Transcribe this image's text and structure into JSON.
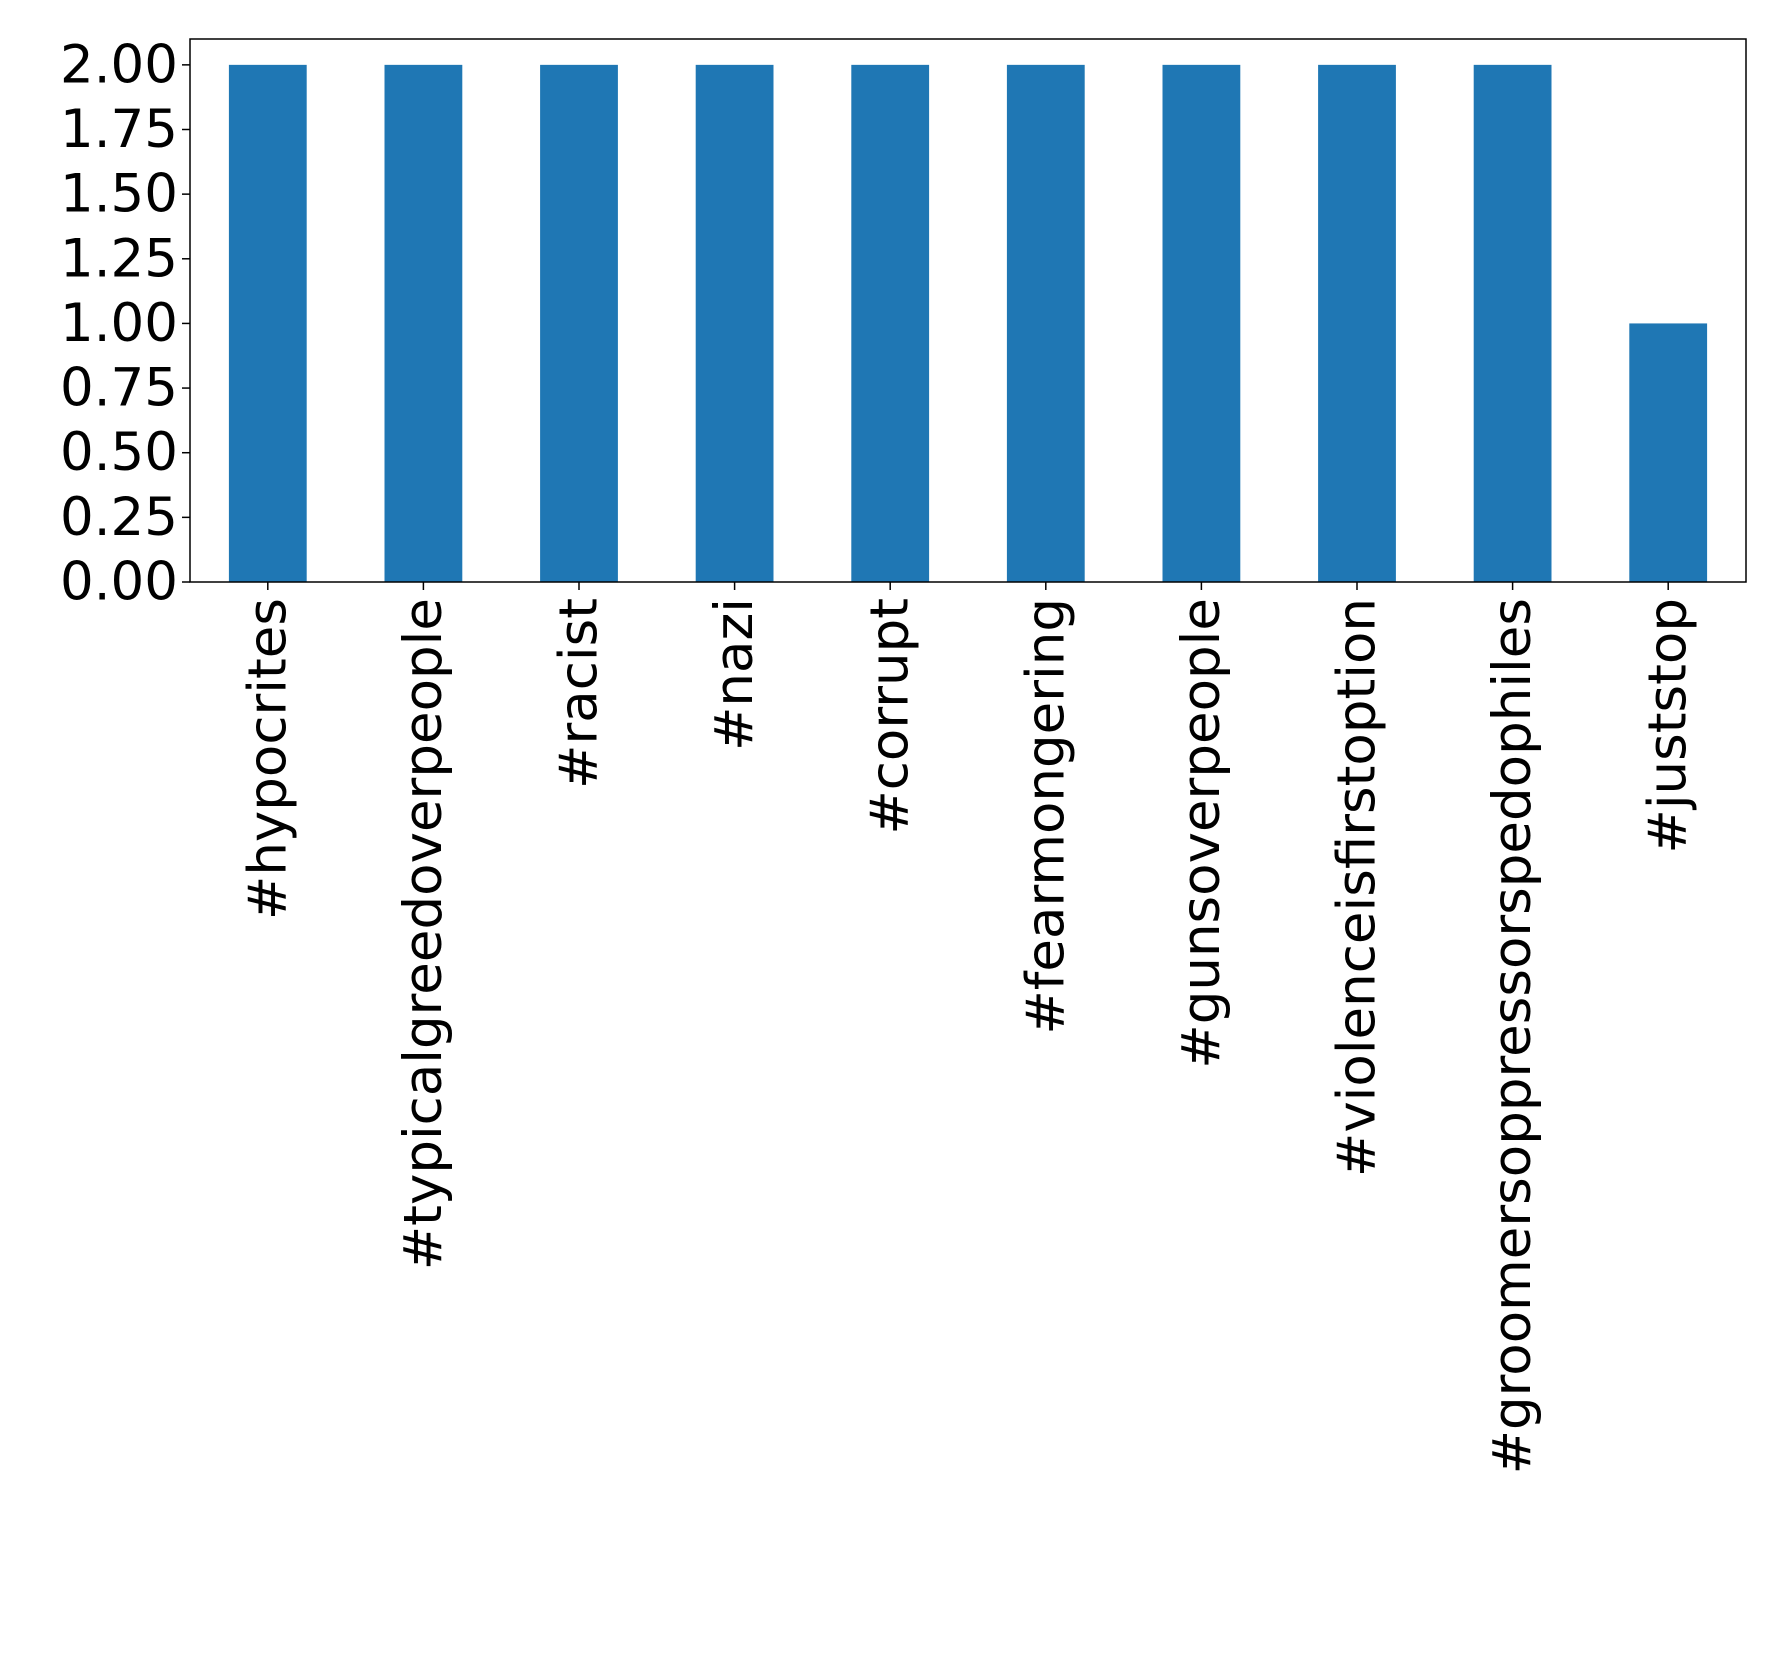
{
  "chart_data": {
    "type": "bar",
    "categories": [
      "#hypocrites",
      "#typicalgreedoverpeople",
      "#racist",
      "#nazi",
      "#corrupt",
      "#fearmongering",
      "#gunsoverpeople",
      "#violenceisfirstoption",
      "#groomersoppressorspedophiles",
      "#juststop"
    ],
    "values": [
      2,
      2,
      2,
      2,
      2,
      2,
      2,
      2,
      2,
      1
    ],
    "title": "",
    "xlabel": "",
    "ylabel": "",
    "ylim": [
      0,
      2.1
    ],
    "yticks": [
      "0.00",
      "0.25",
      "0.50",
      "0.75",
      "1.00",
      "1.25",
      "1.50",
      "1.75",
      "2.00"
    ],
    "grid": false,
    "legend": "none",
    "bar_color": "#1f77b4"
  }
}
